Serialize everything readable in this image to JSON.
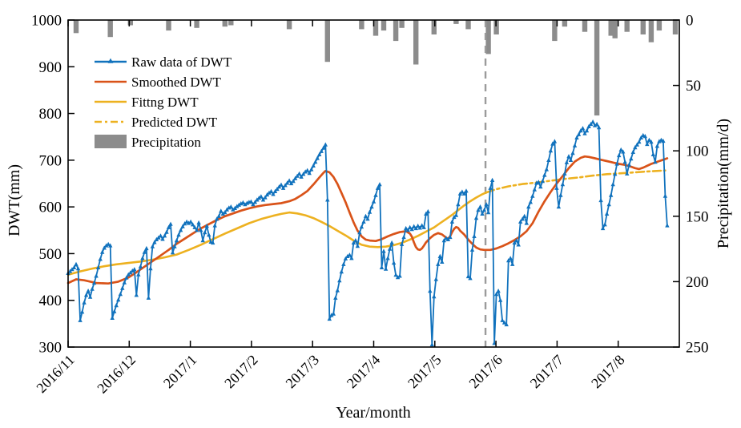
{
  "chart_data": {
    "type": "line",
    "title": "",
    "xlabel": "Year/month",
    "ylabel_left": "DWT(mm)",
    "ylabel_right": "Precipitation(mm/d)",
    "x_tick_labels": [
      "2016/11",
      "2016/12",
      "2017/1",
      "2017/2",
      "2017/3",
      "2017/4",
      "2017/5",
      "2017/6",
      "2017/7",
      "2017/8"
    ],
    "x_total_days": 304,
    "month_spacing_days": 30.4,
    "ylim_left": [
      300,
      1000
    ],
    "yticks_left": [
      300,
      400,
      500,
      600,
      700,
      800,
      900,
      1000
    ],
    "ylim_right": [
      0,
      250
    ],
    "yticks_right": [
      0,
      50,
      100,
      150,
      200,
      250
    ],
    "right_axis_note": "precipitation axis increases downward; bars hang from top",
    "prediction_start_day": 207.6,
    "legend": [
      {
        "label": "Raw data of DWT",
        "type": "line-marker",
        "color": "#1172bd"
      },
      {
        "label": "Smoothed DWT",
        "type": "line",
        "color": "#d95319"
      },
      {
        "label": "Fittng DWT",
        "type": "line",
        "color": "#edb120"
      },
      {
        "label": "Predicted DWT",
        "type": "dash-dot-line",
        "color": "#edb120"
      },
      {
        "label": "Precipitation",
        "type": "bar",
        "color": "#8c8c8c"
      }
    ],
    "colors": {
      "raw": "#1172bd",
      "smoothed": "#d95319",
      "fitting": "#edb120",
      "predicted": "#edb120",
      "precipitation": "#8c8c8c",
      "divider": "#9b9b9b",
      "axis": "#000000"
    },
    "series": {
      "raw_start_day": 0,
      "raw_dwt_daily": [
        458,
        462,
        466,
        470,
        477,
        468,
        357,
        375,
        395,
        411,
        420,
        407,
        424,
        437,
        452,
        470,
        488,
        503,
        512,
        517,
        520,
        517,
        362,
        376,
        389,
        401,
        413,
        426,
        438,
        448,
        455,
        459,
        463,
        466,
        411,
        455,
        472,
        490,
        503,
        511,
        405,
        468,
        515,
        524,
        530,
        534,
        538,
        531,
        538,
        546,
        556,
        563,
        502,
        515,
        528,
        540,
        550,
        558,
        564,
        568,
        565,
        568,
        562,
        556,
        550,
        566,
        550,
        528,
        545,
        559,
        540,
        525,
        523,
        560,
        574,
        580,
        591,
        585,
        588,
        594,
        598,
        600,
        594,
        597,
        601,
        604,
        607,
        609,
        605,
        608,
        610,
        611,
        605,
        610,
        615,
        619,
        622,
        615,
        620,
        626,
        630,
        633,
        627,
        633,
        638,
        643,
        647,
        640,
        646,
        651,
        656,
        650,
        655,
        661,
        666,
        671,
        664,
        670,
        675,
        678,
        672,
        680,
        688,
        696,
        704,
        712,
        719,
        726,
        733,
        615,
        360,
        368,
        371,
        405,
        421,
        442,
        461,
        477,
        489,
        494,
        497,
        490,
        523,
        528,
        516,
        545,
        557,
        568,
        580,
        574,
        589,
        600,
        611,
        625,
        640,
        648,
        470,
        505,
        467,
        490,
        510,
        523,
        480,
        454,
        449,
        452,
        520,
        535,
        554,
        550,
        556,
        552,
        558,
        554,
        559,
        555,
        560,
        556,
        585,
        590,
        420,
        305,
        408,
        445,
        477,
        494,
        482,
        528,
        533,
        530,
        535,
        568,
        578,
        582,
        605,
        628,
        632,
        628,
        634,
        451,
        447,
        508,
        537,
        576,
        593,
        600,
        585,
        593,
        605,
        588,
        640,
        657,
        308,
        413,
        420,
        400,
        357,
        352,
        348,
        485,
        490,
        477,
        523,
        528,
        519,
        568,
        574,
        580,
        565,
        600,
        610,
        623,
        637,
        651,
        653,
        643,
        655,
        668,
        680,
        700,
        720,
        735,
        740,
        640,
        600,
        625,
        648,
        671,
        695,
        708,
        700,
        715,
        731,
        748,
        755,
        763,
        768,
        757,
        763,
        772,
        777,
        782,
        774,
        777,
        770,
        614,
        554,
        562,
        585,
        605,
        625,
        648,
        670,
        692,
        710,
        722,
        718,
        696,
        671,
        690,
        703,
        717,
        727,
        733,
        739,
        748,
        753,
        751,
        734,
        743,
        739,
        712,
        696,
        730,
        740,
        743,
        741,
        623,
        560
      ],
      "smoothed_dwt": [
        [
          0,
          437
        ],
        [
          4,
          445
        ],
        [
          8,
          443
        ],
        [
          14,
          437
        ],
        [
          20,
          436
        ],
        [
          25,
          440
        ],
        [
          30,
          449
        ],
        [
          34,
          460
        ],
        [
          38,
          472
        ],
        [
          42,
          484
        ],
        [
          46,
          496
        ],
        [
          50,
          508
        ],
        [
          54,
          521
        ],
        [
          58,
          532
        ],
        [
          62,
          543
        ],
        [
          66,
          554
        ],
        [
          70,
          563
        ],
        [
          74,
          572
        ],
        [
          78,
          580
        ],
        [
          82,
          586
        ],
        [
          86,
          592
        ],
        [
          90,
          597
        ],
        [
          94,
          601
        ],
        [
          98,
          604
        ],
        [
          102,
          606
        ],
        [
          106,
          608
        ],
        [
          110,
          612
        ],
        [
          113,
          617
        ],
        [
          116,
          625
        ],
        [
          119,
          634
        ],
        [
          122,
          648
        ],
        [
          125,
          663
        ],
        [
          127,
          673
        ],
        [
          128,
          677
        ],
        [
          130,
          674
        ],
        [
          132,
          664
        ],
        [
          134,
          649
        ],
        [
          136,
          630
        ],
        [
          138,
          610
        ],
        [
          140,
          588
        ],
        [
          142,
          567
        ],
        [
          144,
          549
        ],
        [
          146,
          537
        ],
        [
          148,
          530
        ],
        [
          150,
          528
        ],
        [
          153,
          527
        ],
        [
          156,
          531
        ],
        [
          159,
          537
        ],
        [
          162,
          542
        ],
        [
          165,
          546
        ],
        [
          168,
          548
        ],
        [
          170,
          543
        ],
        [
          171,
          536
        ],
        [
          172,
          524
        ],
        [
          173,
          514
        ],
        [
          174,
          509
        ],
        [
          175,
          508
        ],
        [
          176,
          511
        ],
        [
          177,
          517
        ],
        [
          178,
          524
        ],
        [
          180,
          533
        ],
        [
          182,
          540
        ],
        [
          184,
          544
        ],
        [
          186,
          541
        ],
        [
          188,
          534
        ],
        [
          189,
          532
        ],
        [
          190,
          537
        ],
        [
          191,
          546
        ],
        [
          192,
          553
        ],
        [
          193,
          557
        ],
        [
          194,
          555
        ],
        [
          195,
          549
        ],
        [
          197,
          541
        ],
        [
          199,
          530
        ],
        [
          201,
          521
        ],
        [
          203,
          513
        ],
        [
          205,
          509
        ],
        [
          207,
          508
        ],
        [
          210,
          508
        ],
        [
          213,
          511
        ],
        [
          216,
          516
        ],
        [
          219,
          522
        ],
        [
          222,
          529
        ],
        [
          225,
          537
        ],
        [
          228,
          548
        ],
        [
          231,
          565
        ],
        [
          234,
          590
        ],
        [
          237,
          612
        ],
        [
          240,
          632
        ],
        [
          243,
          650
        ],
        [
          246,
          666
        ],
        [
          249,
          683
        ],
        [
          252,
          697
        ],
        [
          255,
          705
        ],
        [
          257,
          708
        ],
        [
          259,
          707
        ],
        [
          262,
          704
        ],
        [
          265,
          701
        ],
        [
          268,
          698
        ],
        [
          271,
          695
        ],
        [
          274,
          692
        ],
        [
          277,
          690
        ],
        [
          280,
          686
        ],
        [
          282,
          683
        ],
        [
          284,
          681
        ],
        [
          286,
          684
        ],
        [
          288,
          688
        ],
        [
          290,
          692
        ],
        [
          292,
          695
        ],
        [
          294,
          698
        ],
        [
          296,
          701
        ],
        [
          298,
          704
        ]
      ],
      "fitting_dwt": [
        [
          0,
          455
        ],
        [
          6,
          462
        ],
        [
          12,
          468
        ],
        [
          18,
          473
        ],
        [
          24,
          477
        ],
        [
          30,
          480
        ],
        [
          36,
          483
        ],
        [
          42,
          487
        ],
        [
          48,
          492
        ],
        [
          54,
          498
        ],
        [
          60,
          508
        ],
        [
          66,
          519
        ],
        [
          72,
          531
        ],
        [
          78,
          543
        ],
        [
          84,
          554
        ],
        [
          90,
          565
        ],
        [
          96,
          574
        ],
        [
          102,
          581
        ],
        [
          106,
          585
        ],
        [
          110,
          588
        ],
        [
          114,
          586
        ],
        [
          118,
          582
        ],
        [
          122,
          576
        ],
        [
          126,
          568
        ],
        [
          130,
          559
        ],
        [
          134,
          549
        ],
        [
          138,
          539
        ],
        [
          142,
          528
        ],
        [
          146,
          519
        ],
        [
          150,
          515
        ],
        [
          154,
          514
        ],
        [
          158,
          515
        ],
        [
          162,
          518
        ],
        [
          166,
          523
        ],
        [
          170,
          530
        ],
        [
          174,
          538
        ],
        [
          178,
          547
        ],
        [
          182,
          556
        ],
        [
          185,
          565
        ],
        [
          188,
          574
        ],
        [
          191,
          583
        ],
        [
          194,
          593
        ],
        [
          197,
          603
        ],
        [
          200,
          612
        ],
        [
          203,
          620
        ],
        [
          206,
          627
        ],
        [
          208,
          631
        ]
      ],
      "predicted_dwt": [
        [
          208,
          631
        ],
        [
          213,
          638
        ],
        [
          219,
          644
        ],
        [
          226,
          649
        ],
        [
          233,
          652
        ],
        [
          240,
          656
        ],
        [
          247,
          660
        ],
        [
          254,
          663
        ],
        [
          261,
          667
        ],
        [
          268,
          670
        ],
        [
          275,
          672
        ],
        [
          282,
          674
        ],
        [
          289,
          676
        ],
        [
          297,
          678
        ]
      ],
      "precipitation_mm_per_day": [
        [
          4,
          10
        ],
        [
          21,
          13
        ],
        [
          31,
          4
        ],
        [
          50,
          8
        ],
        [
          64,
          6
        ],
        [
          78,
          5
        ],
        [
          81,
          4
        ],
        [
          110,
          7
        ],
        [
          129,
          32
        ],
        [
          146,
          7
        ],
        [
          153,
          12
        ],
        [
          157,
          8
        ],
        [
          163,
          16
        ],
        [
          166,
          6
        ],
        [
          173,
          34
        ],
        [
          182,
          11
        ],
        [
          193,
          3
        ],
        [
          199,
          7
        ],
        [
          209,
          26
        ],
        [
          213,
          11
        ],
        [
          242,
          16
        ],
        [
          247,
          5
        ],
        [
          257,
          9
        ],
        [
          263,
          73
        ],
        [
          270,
          12
        ],
        [
          272,
          14
        ],
        [
          278,
          9
        ],
        [
          286,
          11
        ],
        [
          290,
          17
        ],
        [
          294,
          8
        ],
        [
          302,
          11
        ]
      ]
    }
  }
}
